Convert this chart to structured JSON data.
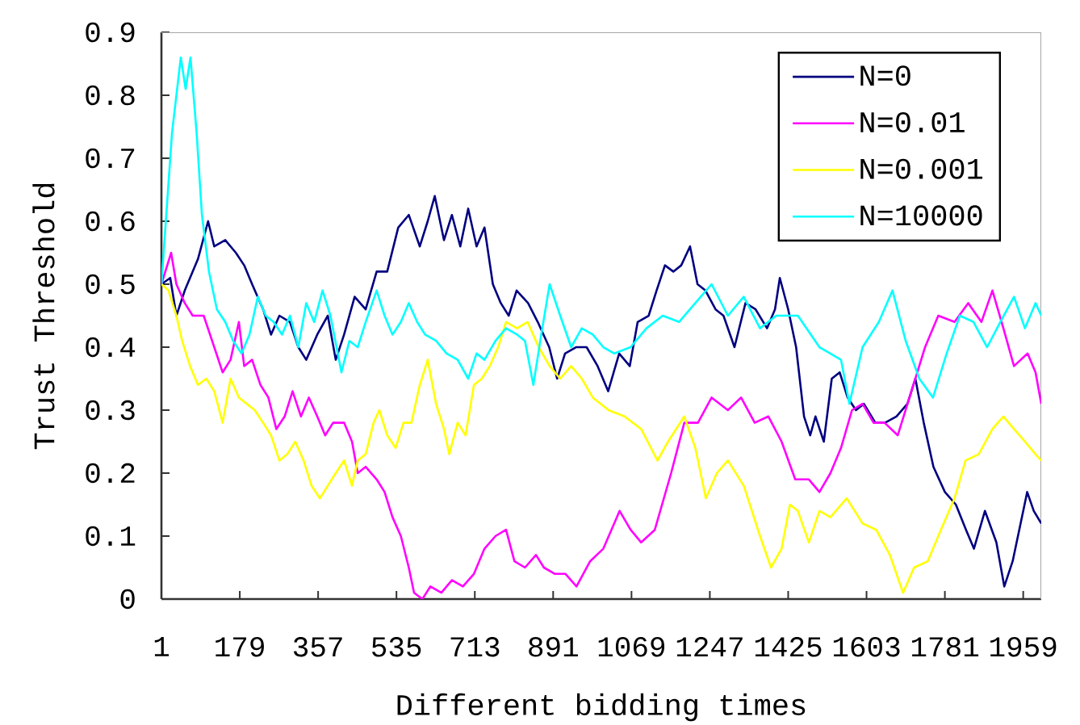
{
  "chart_data": {
    "type": "line",
    "xlabel": "Different bidding times",
    "ylabel": "Trust Threshold",
    "xlim": [
      1,
      2000
    ],
    "xticks": [
      1,
      179,
      357,
      535,
      713,
      891,
      1069,
      1247,
      1425,
      1603,
      1781,
      1959
    ],
    "ylim": [
      0,
      0.9
    ],
    "yticks": [
      0,
      0.1,
      0.2,
      0.3,
      0.4,
      0.5,
      0.6,
      0.7,
      0.8,
      0.9
    ],
    "legend": "top right",
    "series": [
      {
        "name": "N=0",
        "color": "#000080",
        "x": [
          1,
          21,
          35,
          54,
          84,
          107,
          121,
          146,
          170,
          189,
          207,
          232,
          250,
          269,
          293,
          312,
          330,
          355,
          379,
          397,
          416,
          440,
          465,
          490,
          514,
          539,
          563,
          588,
          606,
          622,
          643,
          661,
          680,
          698,
          717,
          735,
          754,
          772,
          790,
          808,
          834,
          856,
          882,
          900,
          918,
          943,
          967,
          992,
          1016,
          1041,
          1065,
          1083,
          1108,
          1126,
          1145,
          1164,
          1182,
          1202,
          1219,
          1237,
          1260,
          1278,
          1303,
          1328,
          1351,
          1377,
          1395,
          1406,
          1425,
          1443,
          1461,
          1475,
          1487,
          1506,
          1524,
          1542,
          1560,
          1579,
          1597,
          1623,
          1645,
          1671,
          1696,
          1714,
          1733,
          1755,
          1781,
          1806,
          1829,
          1847,
          1872,
          1898,
          1916,
          1935,
          1953,
          1968,
          1983,
          2000
        ],
        "values": [
          0.5,
          0.51,
          0.45,
          0.49,
          0.54,
          0.6,
          0.56,
          0.57,
          0.55,
          0.53,
          0.5,
          0.46,
          0.42,
          0.45,
          0.44,
          0.4,
          0.38,
          0.42,
          0.45,
          0.38,
          0.42,
          0.48,
          0.46,
          0.52,
          0.52,
          0.59,
          0.61,
          0.56,
          0.6,
          0.64,
          0.57,
          0.61,
          0.56,
          0.62,
          0.56,
          0.59,
          0.5,
          0.47,
          0.45,
          0.49,
          0.47,
          0.44,
          0.4,
          0.35,
          0.39,
          0.4,
          0.4,
          0.37,
          0.33,
          0.39,
          0.37,
          0.44,
          0.45,
          0.49,
          0.53,
          0.52,
          0.53,
          0.56,
          0.5,
          0.49,
          0.46,
          0.45,
          0.4,
          0.47,
          0.46,
          0.43,
          0.46,
          0.51,
          0.46,
          0.4,
          0.29,
          0.26,
          0.29,
          0.25,
          0.35,
          0.36,
          0.32,
          0.3,
          0.31,
          0.28,
          0.28,
          0.29,
          0.31,
          0.35,
          0.28,
          0.21,
          0.17,
          0.15,
          0.11,
          0.08,
          0.14,
          0.09,
          0.02,
          0.06,
          0.12,
          0.17,
          0.14,
          0.12
        ]
      },
      {
        "name": "N=0.01",
        "color": "#ff00ff",
        "x": [
          1,
          23,
          35,
          54,
          72,
          97,
          121,
          140,
          158,
          177,
          189,
          207,
          226,
          244,
          262,
          281,
          299,
          318,
          336,
          355,
          373,
          391,
          416,
          434,
          447,
          465,
          490,
          508,
          526,
          545,
          563,
          575,
          594,
          612,
          637,
          661,
          686,
          711,
          735,
          760,
          784,
          803,
          827,
          852,
          870,
          895,
          919,
          944,
          975,
          1005,
          1042,
          1067,
          1091,
          1122,
          1159,
          1189,
          1220,
          1251,
          1288,
          1318,
          1349,
          1380,
          1410,
          1441,
          1472,
          1496,
          1521,
          1545,
          1570,
          1594,
          1619,
          1644,
          1674,
          1705,
          1736,
          1766,
          1803,
          1834,
          1864,
          1889,
          1914,
          1938,
          1969,
          1987,
          2000
        ],
        "values": [
          0.5,
          0.55,
          0.5,
          0.47,
          0.45,
          0.45,
          0.4,
          0.36,
          0.38,
          0.44,
          0.37,
          0.38,
          0.34,
          0.32,
          0.27,
          0.29,
          0.33,
          0.29,
          0.32,
          0.29,
          0.26,
          0.28,
          0.28,
          0.25,
          0.2,
          0.21,
          0.19,
          0.17,
          0.13,
          0.1,
          0.05,
          0.01,
          0.0,
          0.02,
          0.01,
          0.03,
          0.02,
          0.04,
          0.08,
          0.1,
          0.11,
          0.06,
          0.05,
          0.07,
          0.05,
          0.04,
          0.04,
          0.02,
          0.06,
          0.08,
          0.14,
          0.11,
          0.09,
          0.11,
          0.2,
          0.28,
          0.28,
          0.32,
          0.3,
          0.32,
          0.28,
          0.29,
          0.25,
          0.19,
          0.19,
          0.17,
          0.2,
          0.24,
          0.3,
          0.31,
          0.28,
          0.28,
          0.26,
          0.33,
          0.4,
          0.45,
          0.44,
          0.47,
          0.44,
          0.49,
          0.43,
          0.37,
          0.39,
          0.36,
          0.31
        ]
      },
      {
        "name": "N=0.001",
        "color": "#ffff00",
        "x": [
          1,
          17,
          35,
          48,
          66,
          84,
          103,
          121,
          140,
          158,
          177,
          195,
          213,
          232,
          250,
          269,
          287,
          305,
          324,
          342,
          361,
          379,
          397,
          416,
          434,
          447,
          465,
          483,
          496,
          514,
          533,
          551,
          569,
          588,
          606,
          625,
          643,
          655,
          674,
          692,
          711,
          729,
          747,
          766,
          784,
          809,
          833,
          858,
          883,
          907,
          932,
          956,
          981,
          1017,
          1053,
          1091,
          1128,
          1152,
          1189,
          1214,
          1238,
          1263,
          1288,
          1324,
          1361,
          1386,
          1410,
          1429,
          1447,
          1472,
          1496,
          1521,
          1558,
          1594,
          1625,
          1656,
          1686,
          1711,
          1742,
          1772,
          1803,
          1828,
          1858,
          1889,
          1914,
          1938,
          1963,
          1987,
          2000
        ],
        "values": [
          0.5,
          0.49,
          0.45,
          0.41,
          0.37,
          0.34,
          0.35,
          0.33,
          0.28,
          0.35,
          0.32,
          0.31,
          0.3,
          0.28,
          0.26,
          0.22,
          0.23,
          0.25,
          0.22,
          0.18,
          0.16,
          0.18,
          0.2,
          0.22,
          0.18,
          0.22,
          0.23,
          0.28,
          0.3,
          0.26,
          0.24,
          0.28,
          0.28,
          0.34,
          0.38,
          0.31,
          0.27,
          0.23,
          0.28,
          0.26,
          0.34,
          0.35,
          0.37,
          0.4,
          0.44,
          0.43,
          0.44,
          0.4,
          0.37,
          0.35,
          0.37,
          0.35,
          0.32,
          0.3,
          0.29,
          0.27,
          0.22,
          0.25,
          0.29,
          0.24,
          0.16,
          0.2,
          0.22,
          0.18,
          0.1,
          0.05,
          0.08,
          0.15,
          0.14,
          0.09,
          0.14,
          0.13,
          0.16,
          0.12,
          0.11,
          0.07,
          0.01,
          0.05,
          0.06,
          0.11,
          0.16,
          0.22,
          0.23,
          0.27,
          0.29,
          0.27,
          0.25,
          0.23,
          0.22
        ]
      },
      {
        "name": "N=10000",
        "color": "#00ffff",
        "x": [
          1,
          12,
          25,
          45,
          56,
          67,
          81,
          93,
          109,
          127,
          146,
          164,
          183,
          201,
          220,
          238,
          256,
          275,
          293,
          312,
          330,
          348,
          367,
          385,
          410,
          428,
          447,
          465,
          490,
          508,
          526,
          545,
          563,
          582,
          600,
          625,
          649,
          674,
          698,
          717,
          735,
          760,
          784,
          809,
          827,
          846,
          864,
          883,
          907,
          932,
          956,
          981,
          1005,
          1030,
          1067,
          1103,
          1140,
          1177,
          1214,
          1251,
          1288,
          1324,
          1361,
          1398,
          1447,
          1496,
          1545,
          1564,
          1594,
          1631,
          1662,
          1692,
          1723,
          1754,
          1785,
          1815,
          1846,
          1877,
          1907,
          1938,
          1963,
          1987,
          2000
        ],
        "values": [
          0.5,
          0.61,
          0.74,
          0.86,
          0.81,
          0.86,
          0.74,
          0.61,
          0.52,
          0.46,
          0.44,
          0.41,
          0.39,
          0.42,
          0.48,
          0.45,
          0.44,
          0.42,
          0.45,
          0.4,
          0.47,
          0.44,
          0.49,
          0.45,
          0.36,
          0.41,
          0.4,
          0.44,
          0.49,
          0.45,
          0.42,
          0.44,
          0.47,
          0.44,
          0.42,
          0.41,
          0.39,
          0.38,
          0.35,
          0.39,
          0.38,
          0.41,
          0.43,
          0.42,
          0.41,
          0.34,
          0.42,
          0.5,
          0.45,
          0.4,
          0.43,
          0.42,
          0.4,
          0.39,
          0.4,
          0.43,
          0.45,
          0.44,
          0.47,
          0.5,
          0.45,
          0.48,
          0.43,
          0.45,
          0.45,
          0.4,
          0.38,
          0.31,
          0.4,
          0.44,
          0.49,
          0.41,
          0.35,
          0.32,
          0.39,
          0.45,
          0.44,
          0.4,
          0.44,
          0.48,
          0.43,
          0.47,
          0.45
        ]
      }
    ]
  }
}
